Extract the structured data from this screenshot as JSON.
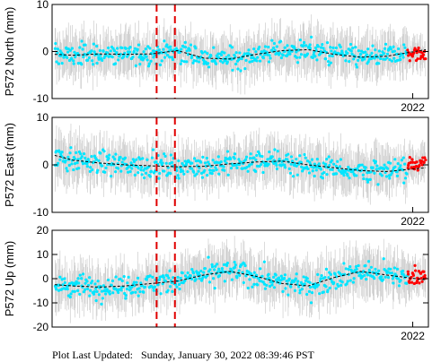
{
  "chart_data": [
    {
      "type": "scatter",
      "ylabel": "P572 North (mm)",
      "ylim": [
        -10,
        10
      ],
      "yticks": [
        -10,
        0,
        10
      ],
      "xlabel_year": "2022",
      "grid": false,
      "x_range": [
        2008.2,
        2022.6
      ],
      "event_lines": [
        2012.2,
        2012.9
      ],
      "model_curve": {
        "color": "#000000",
        "x": [
          2008.3,
          2009,
          2010,
          2011,
          2012,
          2013,
          2014,
          2015,
          2016,
          2017,
          2018,
          2019,
          2020,
          2021,
          2022.5
        ],
        "y": [
          -0.6,
          -0.8,
          -0.5,
          -0.6,
          -0.5,
          0.2,
          -1.4,
          -1.6,
          -0.6,
          0.2,
          0.4,
          -0.6,
          -1.2,
          -1.0,
          0.4
        ]
      },
      "series": [
        {
          "color": "#00e5ff",
          "x_range": [
            2008.3,
            2021.8
          ],
          "y_center": -0.5,
          "y_spread": 4
        },
        {
          "color": "#ff0000",
          "x_range": [
            2021.8,
            2022.5
          ],
          "y_center": -1,
          "y_spread": 3
        }
      ]
    },
    {
      "type": "scatter",
      "ylabel": "P572 East (mm)",
      "ylim": [
        -10,
        10
      ],
      "yticks": [
        -10,
        0,
        10
      ],
      "xlabel_year": "2022",
      "grid": false,
      "x_range": [
        2008.2,
        2022.6
      ],
      "event_lines": [
        2012.2,
        2012.9
      ],
      "model_curve": {
        "color": "#000000",
        "x": [
          2008.3,
          2009,
          2010,
          2011,
          2012,
          2013,
          2014,
          2015,
          2016,
          2017,
          2018,
          2019,
          2020,
          2021,
          2022.5
        ],
        "y": [
          2.0,
          1.0,
          0.4,
          0.0,
          -0.2,
          -0.4,
          -0.3,
          0.2,
          0.6,
          0.8,
          0.0,
          -0.6,
          -1.2,
          -1.4,
          -0.6
        ]
      },
      "series": [
        {
          "color": "#00e5ff",
          "x_range": [
            2008.3,
            2021.8
          ],
          "y_center": 0,
          "y_spread": 4
        },
        {
          "color": "#ff0000",
          "x_range": [
            2021.8,
            2022.5
          ],
          "y_center": 1.5,
          "y_spread": 3
        }
      ]
    },
    {
      "type": "scatter",
      "ylabel": "P572 Up (mm)",
      "ylim": [
        -20,
        20
      ],
      "yticks": [
        -20,
        -10,
        0,
        10,
        20
      ],
      "xlabel_year": "2022",
      "grid": false,
      "x_range": [
        2008.2,
        2022.6
      ],
      "event_lines": [
        2012.2,
        2012.9
      ],
      "model_curve": {
        "color": "#000000",
        "x": [
          2008.3,
          2009,
          2010,
          2011,
          2012,
          2013,
          2014,
          2015,
          2016,
          2017,
          2018,
          2019,
          2020,
          2021,
          2022.5
        ],
        "y": [
          -2.5,
          -3.0,
          -3.5,
          -3.0,
          -2.0,
          -1.0,
          1.5,
          3.0,
          1.0,
          -2.0,
          -3.0,
          0.5,
          3.0,
          1.5,
          -0.5
        ]
      },
      "series": [
        {
          "color": "#00e5ff",
          "x_range": [
            2008.3,
            2021.8
          ],
          "y_center": 0,
          "y_spread": 8
        },
        {
          "color": "#ff0000",
          "x_range": [
            2021.8,
            2022.5
          ],
          "y_center": 3,
          "y_spread": 6
        }
      ]
    }
  ],
  "footer": {
    "label": "Plot Last Updated:",
    "value": "Sunday, January 30, 2022 08:39:46 PST"
  },
  "colors": {
    "errorbar": "#cccccc",
    "event_line": "#e00000",
    "axis": "#000000"
  }
}
